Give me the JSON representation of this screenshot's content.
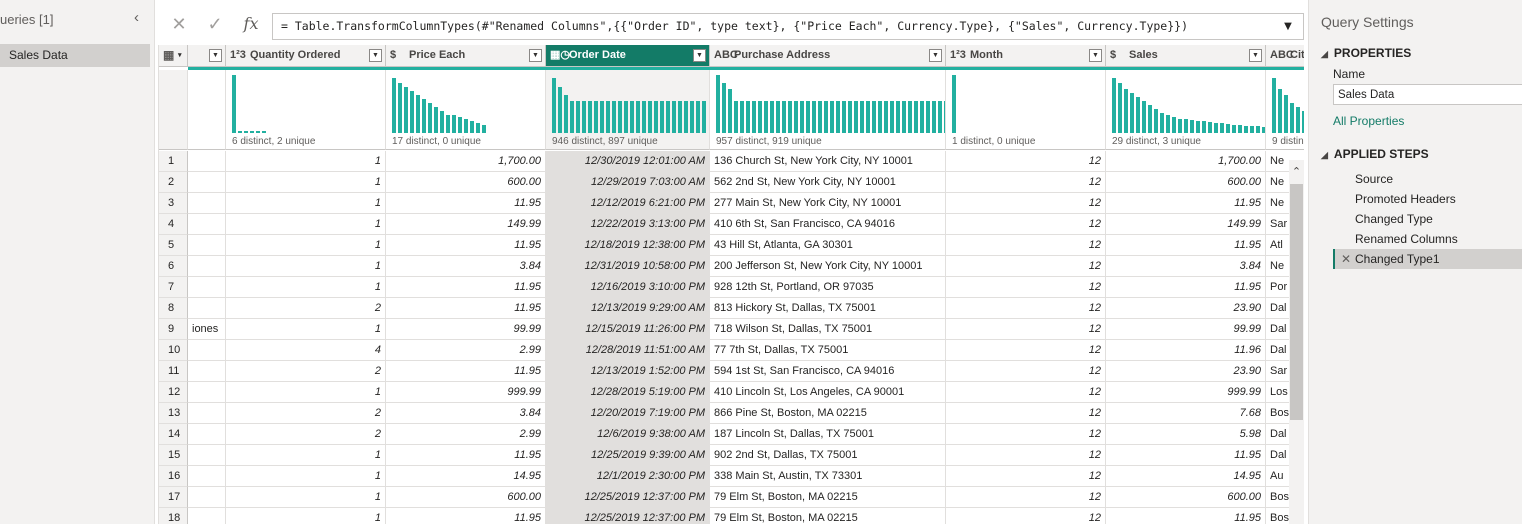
{
  "queries": {
    "header": "ueries [1]",
    "items": [
      "Sales Data"
    ]
  },
  "formula": {
    "text": "= Table.TransformColumnTypes(#\"Renamed Columns\",{{\"Order ID\", type text}, {\"Price Each\", Currency.Type}, {\"Sales\", Currency.Type}})",
    "fx": "fx",
    "cancel": "✕",
    "commit": "✓",
    "expand": "▼"
  },
  "columns": [
    {
      "key": "c0",
      "type_icon": "▦",
      "name": "",
      "align": "left"
    },
    {
      "key": "qty",
      "type_icon": "1²3",
      "name": "Quantity Ordered",
      "align": "right",
      "profile": "6 distinct, 2 unique"
    },
    {
      "key": "price",
      "type_icon": "$",
      "name": "Price Each",
      "align": "right",
      "profile": "17 distinct, 0 unique"
    },
    {
      "key": "date",
      "type_icon": "▦◷",
      "name": "Order Date",
      "align": "right",
      "profile": "946 distinct, 897 unique",
      "selected": true
    },
    {
      "key": "addr",
      "type_icon": "ABC",
      "name": "Purchase Address",
      "align": "left",
      "profile": "957 distinct, 919 unique"
    },
    {
      "key": "month",
      "type_icon": "1²3",
      "name": "Month",
      "align": "right",
      "profile": "1 distinct, 0 unique"
    },
    {
      "key": "sales",
      "type_icon": "$",
      "name": "Sales",
      "align": "right",
      "profile": "29 distinct, 3 unique"
    },
    {
      "key": "city",
      "type_icon": "ABC",
      "name": "Cit",
      "align": "left",
      "profile": "9 distin"
    }
  ],
  "rows": [
    {
      "n": "1",
      "c0": "",
      "qty": "1",
      "price": "1,700.00",
      "date": "12/30/2019 12:01:00 AM",
      "addr": "136 Church St, New York City, NY 10001",
      "month": "12",
      "sales": "1,700.00",
      "city": "Ne"
    },
    {
      "n": "2",
      "c0": "",
      "qty": "1",
      "price": "600.00",
      "date": "12/29/2019 7:03:00 AM",
      "addr": "562 2nd St, New York City, NY 10001",
      "month": "12",
      "sales": "600.00",
      "city": "Ne"
    },
    {
      "n": "3",
      "c0": "",
      "qty": "1",
      "price": "11.95",
      "date": "12/12/2019 6:21:00 PM",
      "addr": "277 Main St, New York City, NY 10001",
      "month": "12",
      "sales": "11.95",
      "city": "Ne"
    },
    {
      "n": "4",
      "c0": "",
      "qty": "1",
      "price": "149.99",
      "date": "12/22/2019 3:13:00 PM",
      "addr": "410 6th St, San Francisco, CA 94016",
      "month": "12",
      "sales": "149.99",
      "city": "Sar"
    },
    {
      "n": "5",
      "c0": "",
      "qty": "1",
      "price": "11.95",
      "date": "12/18/2019 12:38:00 PM",
      "addr": "43 Hill St, Atlanta, GA 30301",
      "month": "12",
      "sales": "11.95",
      "city": "Atl"
    },
    {
      "n": "6",
      "c0": "",
      "qty": "1",
      "price": "3.84",
      "date": "12/31/2019 10:58:00 PM",
      "addr": "200 Jefferson St, New York City, NY 10001",
      "month": "12",
      "sales": "3.84",
      "city": "Ne"
    },
    {
      "n": "7",
      "c0": "",
      "qty": "1",
      "price": "11.95",
      "date": "12/16/2019 3:10:00 PM",
      "addr": "928 12th St, Portland, OR 97035",
      "month": "12",
      "sales": "11.95",
      "city": "Por"
    },
    {
      "n": "8",
      "c0": "",
      "qty": "2",
      "price": "11.95",
      "date": "12/13/2019 9:29:00 AM",
      "addr": "813 Hickory St, Dallas, TX 75001",
      "month": "12",
      "sales": "23.90",
      "city": "Dal"
    },
    {
      "n": "9",
      "c0": "iones",
      "qty": "1",
      "price": "99.99",
      "date": "12/15/2019 11:26:00 PM",
      "addr": "718 Wilson St, Dallas, TX 75001",
      "month": "12",
      "sales": "99.99",
      "city": "Dal"
    },
    {
      "n": "10",
      "c0": "",
      "qty": "4",
      "price": "2.99",
      "date": "12/28/2019 11:51:00 AM",
      "addr": "77 7th St, Dallas, TX 75001",
      "month": "12",
      "sales": "11.96",
      "city": "Dal"
    },
    {
      "n": "11",
      "c0": "",
      "qty": "2",
      "price": "11.95",
      "date": "12/13/2019 1:52:00 PM",
      "addr": "594 1st St, San Francisco, CA 94016",
      "month": "12",
      "sales": "23.90",
      "city": "Sar"
    },
    {
      "n": "12",
      "c0": "",
      "qty": "1",
      "price": "999.99",
      "date": "12/28/2019 5:19:00 PM",
      "addr": "410 Lincoln St, Los Angeles, CA 90001",
      "month": "12",
      "sales": "999.99",
      "city": "Los"
    },
    {
      "n": "13",
      "c0": "",
      "qty": "2",
      "price": "3.84",
      "date": "12/20/2019 7:19:00 PM",
      "addr": "866 Pine St, Boston, MA 02215",
      "month": "12",
      "sales": "7.68",
      "city": "Bos"
    },
    {
      "n": "14",
      "c0": "",
      "qty": "2",
      "price": "2.99",
      "date": "12/6/2019 9:38:00 AM",
      "addr": "187 Lincoln St, Dallas, TX 75001",
      "month": "12",
      "sales": "5.98",
      "city": "Dal"
    },
    {
      "n": "15",
      "c0": "",
      "qty": "1",
      "price": "11.95",
      "date": "12/25/2019 9:39:00 AM",
      "addr": "902 2nd St, Dallas, TX 75001",
      "month": "12",
      "sales": "11.95",
      "city": "Dal"
    },
    {
      "n": "16",
      "c0": "",
      "qty": "1",
      "price": "14.95",
      "date": "12/1/2019 2:30:00 PM",
      "addr": "338 Main St, Austin, TX 73301",
      "month": "12",
      "sales": "14.95",
      "city": "Au"
    },
    {
      "n": "17",
      "c0": "",
      "qty": "1",
      "price": "600.00",
      "date": "12/25/2019 12:37:00 PM",
      "addr": "79 Elm St, Boston, MA 02215",
      "month": "12",
      "sales": "600.00",
      "city": "Bos"
    },
    {
      "n": "18",
      "c0": "",
      "qty": "1",
      "price": "11.95",
      "date": "12/25/2019 12:37:00 PM",
      "addr": "79 Elm St, Boston, MA 02215",
      "month": "12",
      "sales": "11.95",
      "city": "Bos"
    }
  ],
  "settings": {
    "title": "Query Settings",
    "properties_header": "PROPERTIES",
    "name_label": "Name",
    "name_value": "Sales Data",
    "all_properties": "All Properties",
    "steps_header": "APPLIED STEPS",
    "steps": [
      "Source",
      "Promoted Headers",
      "Changed Type",
      "Renamed Columns",
      "Changed Type1"
    ]
  },
  "colors": {
    "accent": "#137b67",
    "profile_bar": "#22b0a0"
  },
  "icons": {
    "collapse": "chevron-left-icon",
    "scroll_up": "chevron-up-icon",
    "dropdown": "chevron-down-icon",
    "step_delete": "close-icon",
    "table_menu": "table-icon"
  }
}
